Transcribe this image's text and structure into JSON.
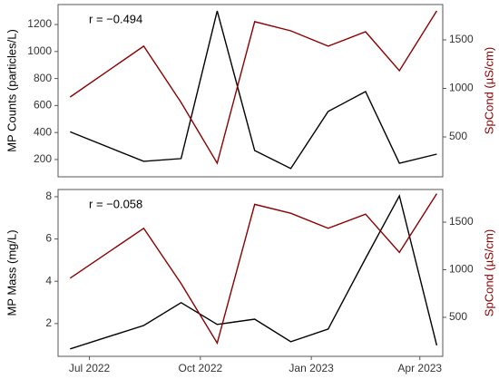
{
  "chart_data": [
    {
      "type": "line",
      "annotation": "r = −0.494",
      "ylabel": "MP Counts (particles/L)",
      "y2label": "SpCond (µS/cm)",
      "x": [
        "2022-06",
        "2022-08",
        "2022-09",
        "2022-10",
        "2022-11",
        "2022-12",
        "2023-01",
        "2023-02",
        "2023-03",
        "2023-04"
      ],
      "xlim": [
        "2022-06",
        "2023-04"
      ],
      "ylim": [
        72,
        1348
      ],
      "yticks": [
        200,
        400,
        600,
        800,
        1000,
        1200
      ],
      "y2lim": [
        89,
        1864
      ],
      "y2ticks": [
        500,
        1000,
        1500
      ],
      "series": [
        {
          "color": "#000000",
          "values": [
            405,
            187,
            207,
            1300,
            267,
            133,
            556,
            703,
            173,
            240
          ]
        },
        {
          "color": "#8b0000",
          "axis": "y2",
          "values": [
            911,
            1435,
            855,
            229,
            1687,
            1593,
            1435,
            1584,
            1182,
            1799
          ]
        }
      ]
    },
    {
      "type": "line",
      "annotation": "r = −0.058",
      "ylabel": "MP Mass (mg/L)",
      "y2label": "SpCond (µS/cm)",
      "x": [
        "2022-06",
        "2022-08",
        "2022-09",
        "2022-10",
        "2022-11",
        "2022-12",
        "2023-01",
        "2023-02",
        "2023-03",
        "2023-04"
      ],
      "xlim": [
        "2022-06",
        "2023-04"
      ],
      "xticks": [
        {
          "value": "2022-07",
          "label": "Jul 2022"
        },
        {
          "value": "2022-10",
          "label": "Oct 2022"
        },
        {
          "value": "2023-01",
          "label": "Jan 2023"
        },
        {
          "value": "2023-04",
          "label": "Apr 2023"
        }
      ],
      "ylim": [
        0.45,
        8.34
      ],
      "yticks": [
        2,
        4,
        6,
        8
      ],
      "y2lim": [
        90,
        1843
      ],
      "y2ticks": [
        500,
        1000,
        1500
      ],
      "series": [
        {
          "color": "#000000",
          "values": [
            0.8,
            1.91,
            2.99,
            1.96,
            2.21,
            1.14,
            1.74,
            5.08,
            8.04,
            0.97
          ]
        },
        {
          "color": "#8b0000",
          "axis": "y2",
          "values": [
            911,
            1435,
            855,
            229,
            1687,
            1593,
            1435,
            1584,
            1182,
            1799
          ]
        }
      ]
    }
  ]
}
